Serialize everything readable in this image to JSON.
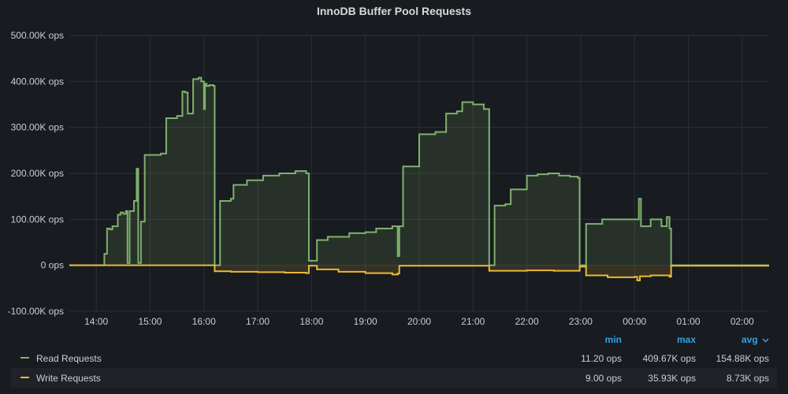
{
  "panel": {
    "title": "InnoDB Buffer Pool Requests"
  },
  "chart_data": {
    "type": "line",
    "title": "InnoDB Buffer Pool Requests",
    "y_ticks": [
      "500.00K ops",
      "400.00K ops",
      "300.00K ops",
      "200.00K ops",
      "100.00K ops",
      "0 ops",
      "-100.00K ops"
    ],
    "y_tick_values": [
      500000,
      400000,
      300000,
      200000,
      100000,
      0,
      -100000
    ],
    "ylim": [
      -100000,
      500000
    ],
    "x_ticks": [
      "14:00",
      "15:00",
      "16:00",
      "17:00",
      "18:00",
      "19:00",
      "20:00",
      "21:00",
      "22:00",
      "23:00",
      "00:00",
      "01:00",
      "02:00"
    ],
    "x_tick_hours": [
      14,
      15,
      16,
      17,
      18,
      19,
      20,
      21,
      22,
      23,
      24,
      25,
      26
    ],
    "xlim_hours": [
      13.5,
      26.5
    ],
    "grid": true,
    "series": [
      {
        "name": "Read Requests",
        "color": "#7eb26d",
        "x": [
          13.5,
          14.1,
          14.15,
          14.2,
          14.25,
          14.3,
          14.4,
          14.45,
          14.5,
          14.55,
          14.58,
          14.62,
          14.7,
          14.75,
          14.78,
          14.83,
          14.9,
          15.2,
          15.3,
          15.5,
          15.6,
          15.65,
          15.7,
          15.8,
          15.9,
          15.95,
          16,
          16.02,
          16.05,
          16.1,
          16.18,
          16.2,
          16.3,
          16.5,
          16.55,
          16.8,
          17.1,
          17.4,
          17.7,
          17.9,
          17.95,
          18.1,
          18.3,
          18.7,
          19,
          19.2,
          19.5,
          19.6,
          19.63,
          19.7,
          19.9,
          20,
          20.3,
          20.5,
          20.7,
          20.8,
          21,
          21.2,
          21.25,
          21.3,
          21.4,
          21.6,
          21.7,
          22,
          22.2,
          22.4,
          22.6,
          22.8,
          22.95,
          22.98,
          23.1,
          23.4,
          23.8,
          24.05,
          24.08,
          24.12,
          24.3,
          24.5,
          24.6,
          24.65,
          24.68,
          26.5
        ],
        "y": [
          0,
          0,
          25000,
          80000,
          78000,
          85000,
          110000,
          115000,
          112000,
          118000,
          5000,
          118000,
          140000,
          210000,
          5000,
          95000,
          240000,
          243000,
          320000,
          325000,
          378000,
          376000,
          330000,
          405000,
          408000,
          400000,
          340000,
          395000,
          390000,
          392000,
          390000,
          0,
          140000,
          145000,
          175000,
          185000,
          195000,
          200000,
          205000,
          200000,
          10000,
          55000,
          62000,
          70000,
          72000,
          80000,
          85000,
          20000,
          85000,
          215000,
          215000,
          285000,
          290000,
          330000,
          335000,
          355000,
          350000,
          340000,
          340000,
          0,
          130000,
          133000,
          165000,
          195000,
          198000,
          200000,
          195000,
          193000,
          190000,
          0,
          90000,
          100000,
          100000,
          100000,
          145000,
          85000,
          100000,
          85000,
          105000,
          80000,
          0,
          0
        ],
        "stats": {
          "min": "11.20 ops",
          "max": "409.67K ops",
          "avg": "154.88K ops"
        }
      },
      {
        "name": "Write Requests",
        "color": "#eab839",
        "x": [
          13.5,
          16.18,
          16.2,
          16.5,
          17,
          17.5,
          17.9,
          17.95,
          18.1,
          18.5,
          19,
          19.5,
          19.6,
          19.63,
          20,
          21.25,
          21.3,
          22,
          22.5,
          22.95,
          22.98,
          23.1,
          23.5,
          24,
          24.05,
          24.1,
          24.3,
          24.65,
          24.68,
          26.5
        ],
        "y": [
          0,
          0,
          -13000,
          -14000,
          -15000,
          -16000,
          -17000,
          -1000,
          -9000,
          -14000,
          -17000,
          -20000,
          -18000,
          -1000,
          -1000,
          -1000,
          -12000,
          -11000,
          -12000,
          -12000,
          -3000,
          -22000,
          -26000,
          -25000,
          -33000,
          -24000,
          -22000,
          -25000,
          -1000,
          -1000
        ],
        "stats": {
          "min": "9.00 ops",
          "max": "35.93K ops",
          "avg": "8.73K ops"
        }
      }
    ]
  },
  "legend": {
    "headers": {
      "min": "min",
      "max": "max",
      "avg": "avg",
      "avg_sort_icon": "chevron-down-icon"
    }
  }
}
